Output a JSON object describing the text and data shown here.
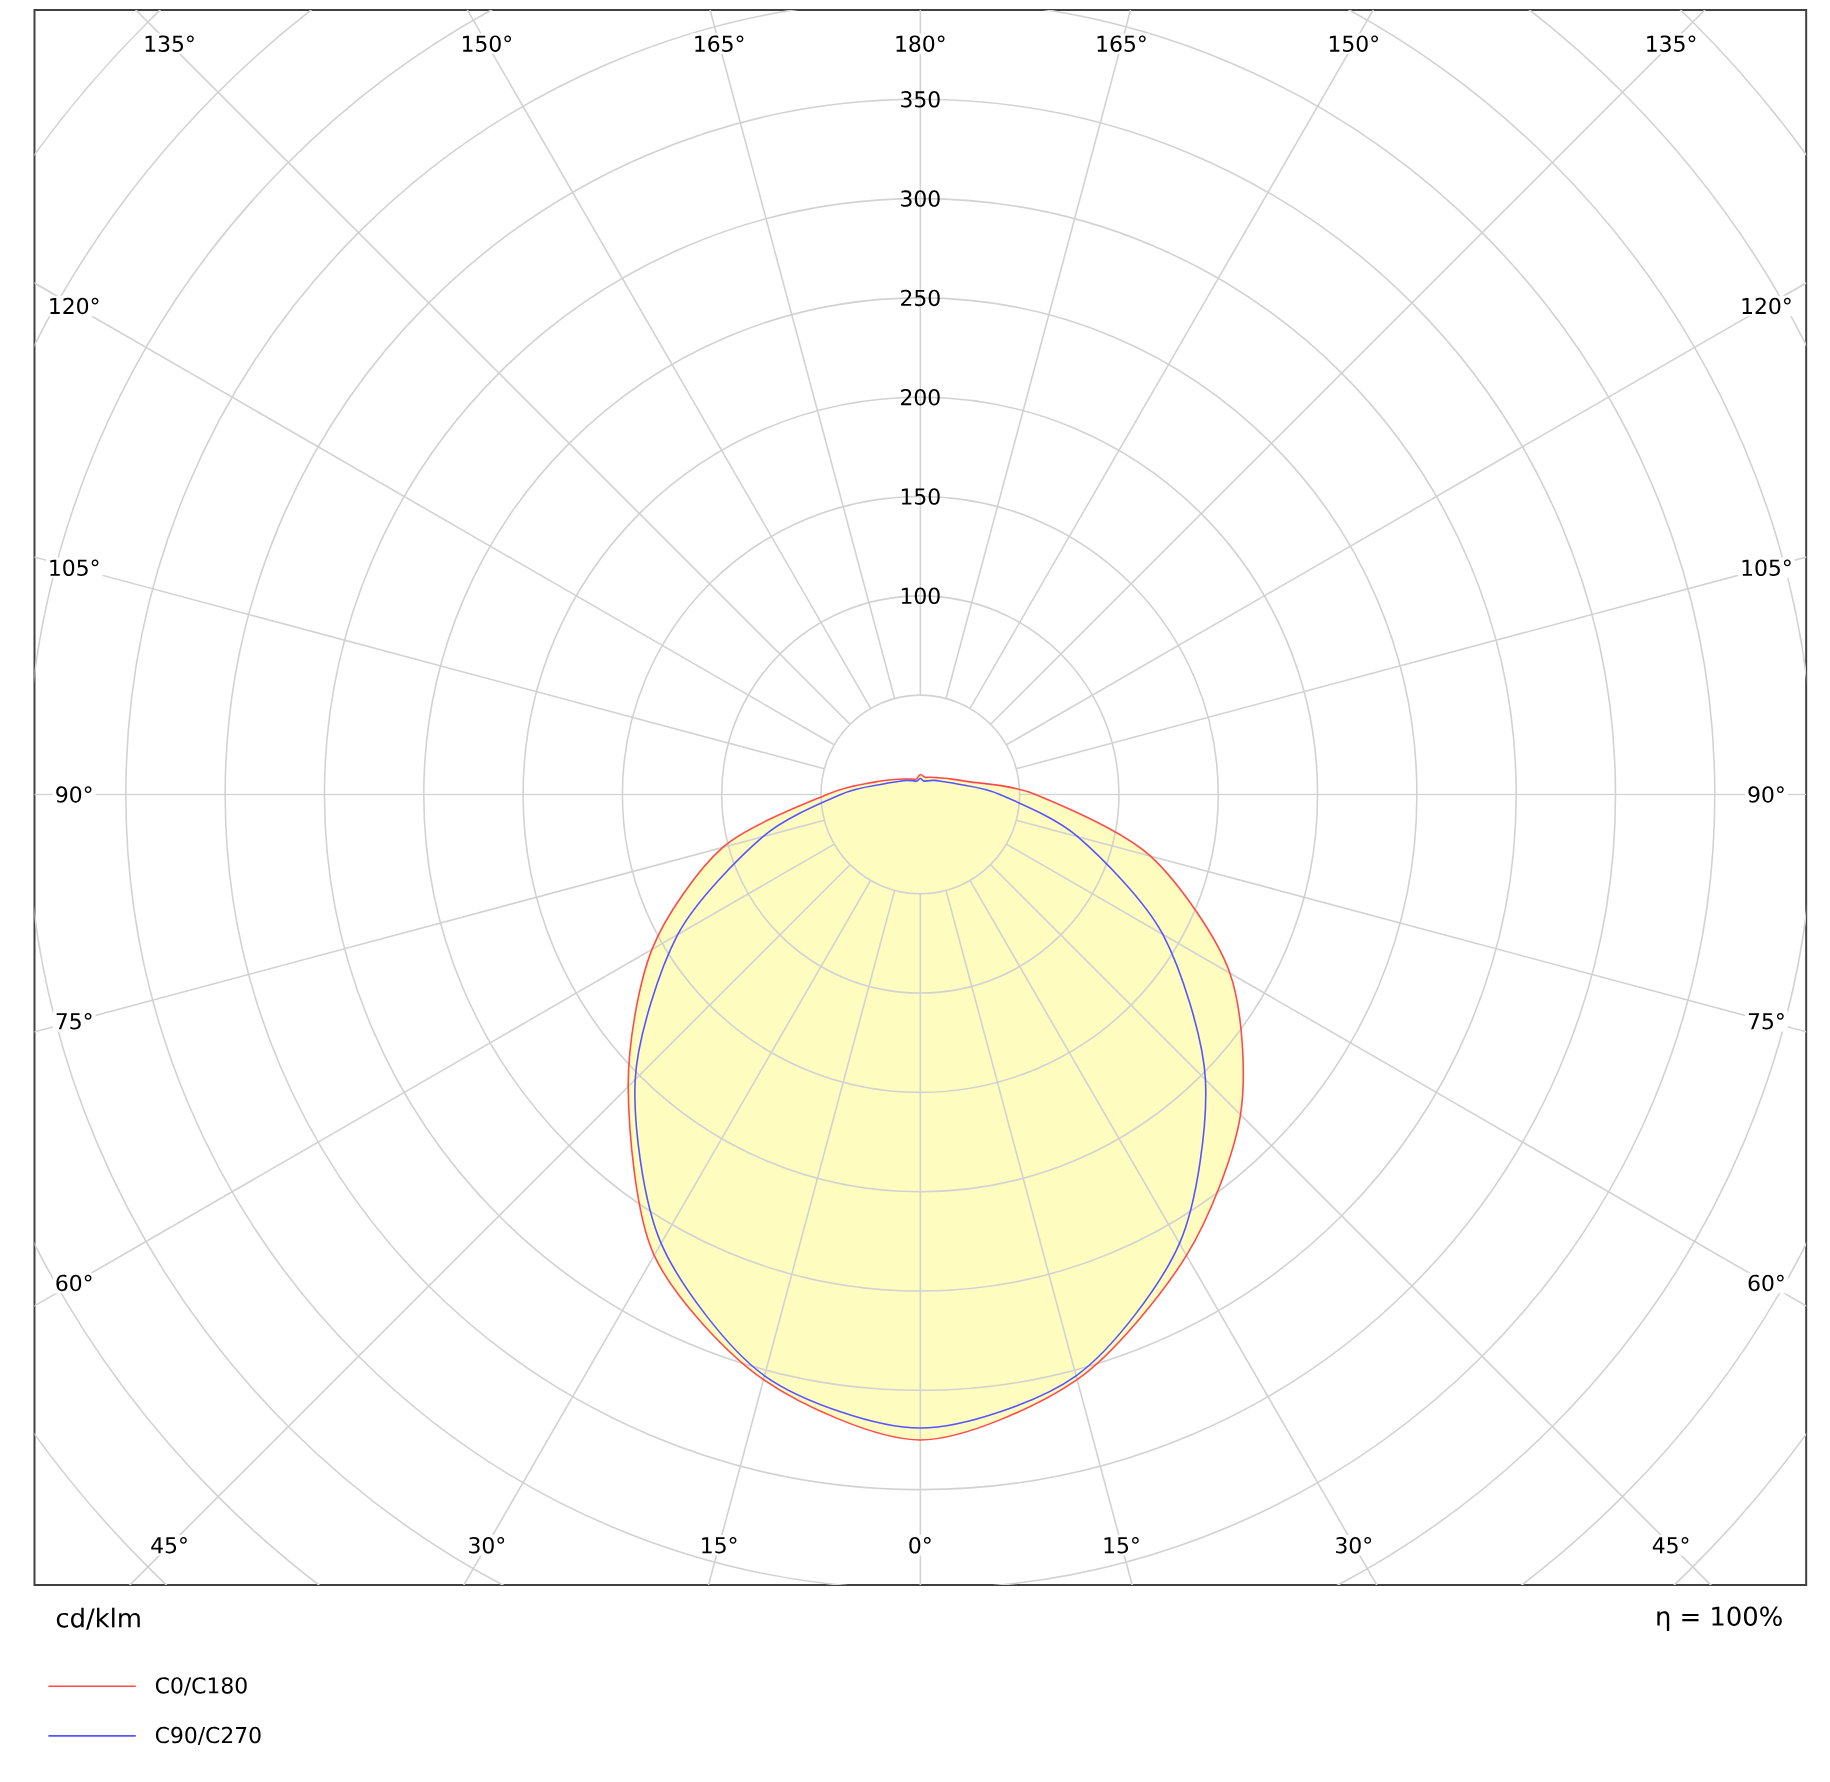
{
  "chart_data": {
    "type": "radar",
    "ylabel": "cd/klm",
    "annotations": [
      "η = 100%"
    ],
    "categories": [
      "180°",
      "165°",
      "150°",
      "135°",
      "120°",
      "105°",
      "90°",
      "75°",
      "60°",
      "45°",
      "30°",
      "15°",
      "0°",
      "15°",
      "30°",
      "45°",
      "60°",
      "75°",
      "90°",
      "105°",
      "120°",
      "135°",
      "150°",
      "165°"
    ],
    "ylim": [
      0,
      600
    ],
    "yticks": [
      100,
      150,
      200,
      250,
      300,
      350
    ],
    "grid": true,
    "legend": "bottom left",
    "series": [
      {
        "name": "C0/C180",
        "color": "#ff4a4a",
        "type": "area",
        "values": [
          10,
          9,
          10,
          12,
          16,
          25,
          58,
          120,
          180,
          228,
          268,
          305,
          325,
          305,
          268,
          208,
          156,
          103,
          47,
          24,
          15,
          11,
          9,
          8
        ]
      },
      {
        "name": "C90/C270",
        "color": "#5555ff",
        "values": [
          8,
          7,
          8,
          10,
          13,
          20,
          40,
          82,
          141,
          203,
          261,
          303,
          319,
          303,
          261,
          203,
          141,
          82,
          40,
          20,
          13,
          10,
          8,
          7
        ]
      }
    ]
  }
}
